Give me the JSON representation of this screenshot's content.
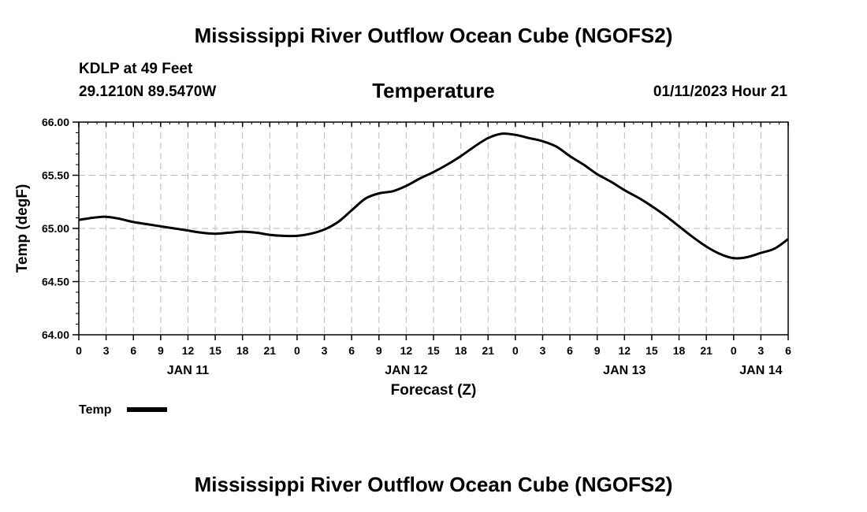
{
  "header": {
    "main_title": "Mississippi River Outflow Ocean Cube (NGOFS2)",
    "station": "KDLP at 49 Feet",
    "coords": "29.1210N  89.5470W",
    "subtitle": "Temperature",
    "timestamp": "01/11/2023 Hour 21"
  },
  "footer": {
    "title": "Mississippi River Outflow Ocean Cube (NGOFS2)"
  },
  "chart_data": {
    "type": "line",
    "title": "Temperature",
    "xlabel": "Forecast (Z)",
    "ylabel": "Temp (degF)",
    "xlim": [
      0,
      78
    ],
    "ylim": [
      64.0,
      66.0
    ],
    "yticks": [
      64.0,
      64.5,
      65.0,
      65.5,
      66.0
    ],
    "ytick_labels": [
      "64.00",
      "64.50",
      "65.00",
      "65.50",
      "66.00"
    ],
    "xticks": [
      0,
      3,
      6,
      9,
      12,
      15,
      18,
      21,
      24,
      27,
      30,
      33,
      36,
      39,
      42,
      45,
      48,
      51,
      54,
      57,
      60,
      63,
      66,
      69,
      72,
      75,
      78
    ],
    "xtick_labels": [
      "0",
      "3",
      "6",
      "9",
      "12",
      "15",
      "18",
      "21",
      "0",
      "3",
      "6",
      "9",
      "12",
      "15",
      "18",
      "21",
      "0",
      "3",
      "6",
      "9",
      "12",
      "15",
      "18",
      "21",
      "0",
      "3",
      "6"
    ],
    "day_labels": [
      {
        "x": 12,
        "label": "JAN 11"
      },
      {
        "x": 36,
        "label": "JAN 12"
      },
      {
        "x": 60,
        "label": "JAN 13"
      },
      {
        "x": 75,
        "label": "JAN 14"
      }
    ],
    "grid": true,
    "legend": [
      {
        "name": "Temp",
        "color": "#000000"
      }
    ],
    "series": [
      {
        "name": "Temp",
        "color": "#000000",
        "x": [
          0,
          1.5,
          3,
          4.5,
          6,
          7.5,
          9,
          10.5,
          12,
          13.5,
          15,
          16.5,
          18,
          19.5,
          21,
          22.5,
          24,
          25.5,
          27,
          28.5,
          30,
          31.5,
          33,
          34.5,
          36,
          37.5,
          39,
          40.5,
          42,
          43.5,
          45,
          46.5,
          48,
          49.5,
          51,
          52.5,
          54,
          55.5,
          57,
          58.5,
          60,
          61.5,
          63,
          64.5,
          66,
          67.5,
          69,
          70.5,
          72,
          73.5,
          75,
          76.5,
          78
        ],
        "values": [
          65.08,
          65.1,
          65.11,
          65.09,
          65.06,
          65.04,
          65.02,
          65.0,
          64.98,
          64.96,
          64.95,
          64.96,
          64.97,
          64.96,
          64.94,
          64.93,
          64.93,
          64.95,
          64.99,
          65.06,
          65.17,
          65.28,
          65.33,
          65.35,
          65.4,
          65.47,
          65.53,
          65.6,
          65.68,
          65.77,
          65.85,
          65.89,
          65.88,
          65.85,
          65.82,
          65.77,
          65.68,
          65.6,
          65.51,
          65.44,
          65.36,
          65.29,
          65.21,
          65.12,
          65.02,
          64.92,
          64.83,
          64.76,
          64.72,
          64.73,
          64.77,
          64.81,
          64.9
        ]
      }
    ]
  }
}
